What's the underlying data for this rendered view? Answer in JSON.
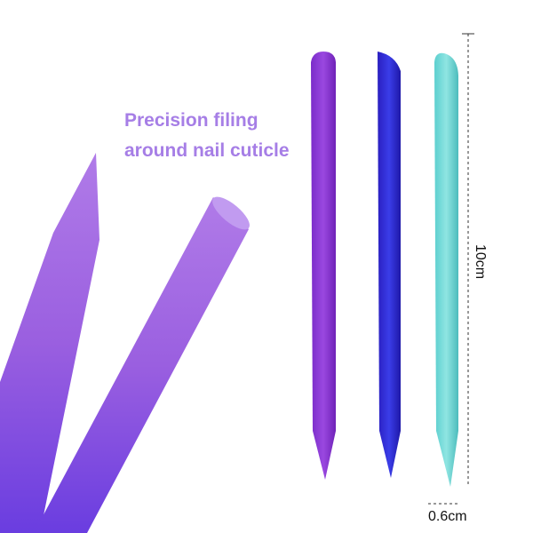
{
  "caption": {
    "lines": [
      "Precision filing",
      "around nail cuticle"
    ]
  },
  "dimensions": {
    "length": "10cm",
    "width": "0.6cm"
  }
}
